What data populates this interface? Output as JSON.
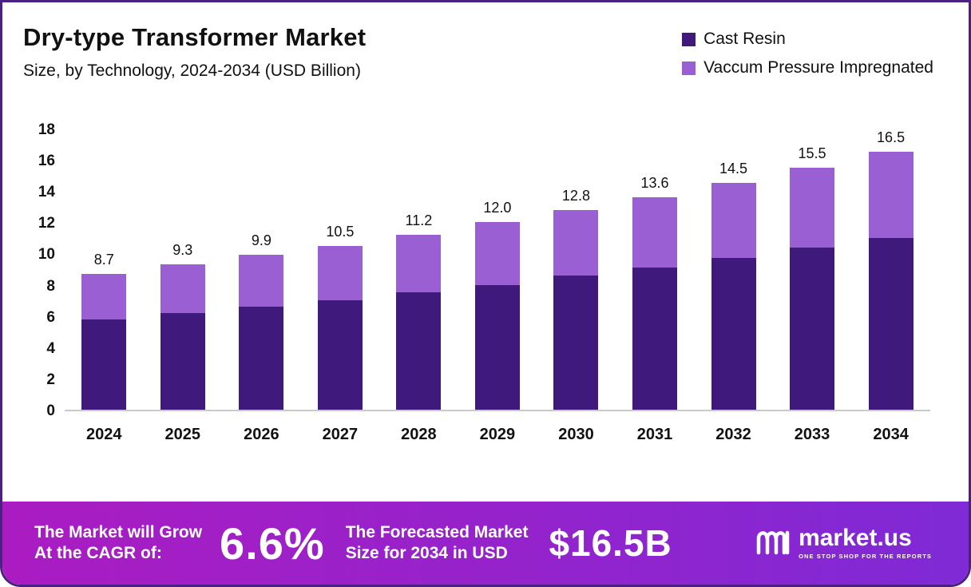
{
  "header": {
    "title": "Dry-type Transformer Market",
    "subtitle": "Size, by Technology, 2024-2034 (USD Billion)"
  },
  "legend": [
    {
      "label": "Cast Resin",
      "color": "#3f1a7c"
    },
    {
      "label": "Vaccum Pressure Impregnated",
      "color": "#9a5fd2"
    }
  ],
  "chart_data": {
    "type": "bar",
    "stacked": true,
    "title": "Dry-type Transformer Market",
    "subtitle": "Size, by Technology, 2024-2034 (USD Billion)",
    "xlabel": "",
    "ylabel": "",
    "ylim": [
      0,
      18
    ],
    "yticks": [
      0,
      2,
      4,
      6,
      8,
      10,
      12,
      14,
      16,
      18
    ],
    "grid": false,
    "legend_position": "top-right",
    "categories": [
      "2024",
      "2025",
      "2026",
      "2027",
      "2028",
      "2029",
      "2030",
      "2031",
      "2032",
      "2033",
      "2034"
    ],
    "series": [
      {
        "name": "Cast Resin",
        "color": "#3f1a7c",
        "values": [
          5.8,
          6.2,
          6.6,
          7.0,
          7.5,
          8.0,
          8.6,
          9.1,
          9.7,
          10.4,
          11.0
        ]
      },
      {
        "name": "Vaccum Pressure Impregnated",
        "color": "#9a5fd2",
        "values": [
          2.9,
          3.1,
          3.3,
          3.5,
          3.7,
          4.0,
          4.2,
          4.5,
          4.8,
          5.1,
          5.5
        ]
      }
    ],
    "totals_labels": [
      "8.7",
      "9.3",
      "9.9",
      "10.5",
      "11.2",
      "12.0",
      "12.8",
      "13.6",
      "14.5",
      "15.5",
      "16.5"
    ]
  },
  "banner": {
    "cagr_label_line1": "The Market will Grow",
    "cagr_label_line2": "At the CAGR of:",
    "cagr_value": "6.6%",
    "forecast_label_line1": "The Forecasted Market",
    "forecast_label_line2": "Size for 2034 in USD",
    "forecast_value": "$16.5B",
    "brand_name": "market.us",
    "brand_tagline": "ONE STOP SHOP FOR THE REPORTS"
  },
  "colors": {
    "cast_resin": "#3f1a7c",
    "vpi": "#9a5fd2",
    "banner_gradient_start": "#aa1cc2",
    "banner_gradient_end": "#7f2ad6",
    "page_border": "#4a2083"
  }
}
